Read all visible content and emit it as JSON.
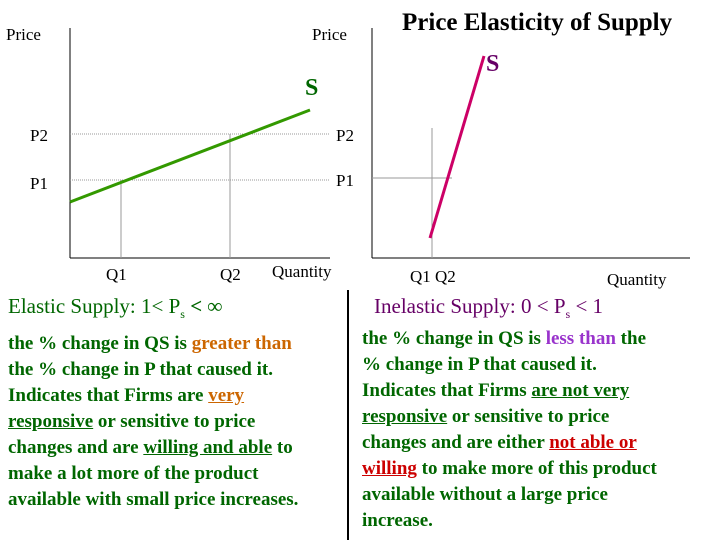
{
  "colors": {
    "elastic_curve": "#339900",
    "inelastic_curve": "#cc0066",
    "elastic_heading": "#006600",
    "inelastic_heading": "#660066",
    "body_text": "#006600",
    "highlight_greater": "#cc6600",
    "highlight_less": "#9933cc",
    "highlight_red": "#cc0000"
  },
  "left_graph": {
    "y_axis_label": "Price",
    "curve_label": "S",
    "price_labels_left": [
      "P2",
      "P1"
    ],
    "price_labels_right": [
      "P2",
      "P1"
    ],
    "y_axis_label_right": "Price",
    "quantity_labels": [
      "Q1",
      "Q2"
    ],
    "x_axis_label": "Quantity"
  },
  "right_graph": {
    "title": "Price Elasticity of Supply",
    "curve_label": "S",
    "quantity_labels": "Q1 Q2",
    "x_axis_label": "Quantity"
  },
  "elastic": {
    "heading_prefix": "Elastic Supply:  1< P",
    "heading_sub": "s",
    "heading_suffix": " <  ∞",
    "line1_a": "the % change in QS is ",
    "line1_b": "greater than",
    "line2": "the % change in P  that caused it.",
    "line3_a": "Indicates that Firms are ",
    "line3_b": "very",
    "line4_a": "responsive",
    "line4_b": " or sensitive to price",
    "line5_a": "changes and are ",
    "line5_b": "willing and able",
    "line5_c": " to",
    "line6": "make a lot more of the product",
    "line7": "available with small price increases."
  },
  "inelastic": {
    "heading_prefix": "Inelastic Supply: 0 < P",
    "heading_sub": "s",
    "heading_suffix": " < 1",
    "line1_a": "the % change in QS is ",
    "line1_b": "less than",
    "line1_c": " the",
    "line2": "% change in P that caused it.",
    "line3_a": "Indicates that Firms ",
    "line3_b": "are not very",
    "line4_a": "responsive",
    "line4_b": " or sensitive to price",
    "line5_a": "changes and are either ",
    "line5_b": "not able or",
    "line6_a": "willing",
    "line6_b": " to make more of this product",
    "line7": "available without a large price",
    "line8": "increase."
  }
}
